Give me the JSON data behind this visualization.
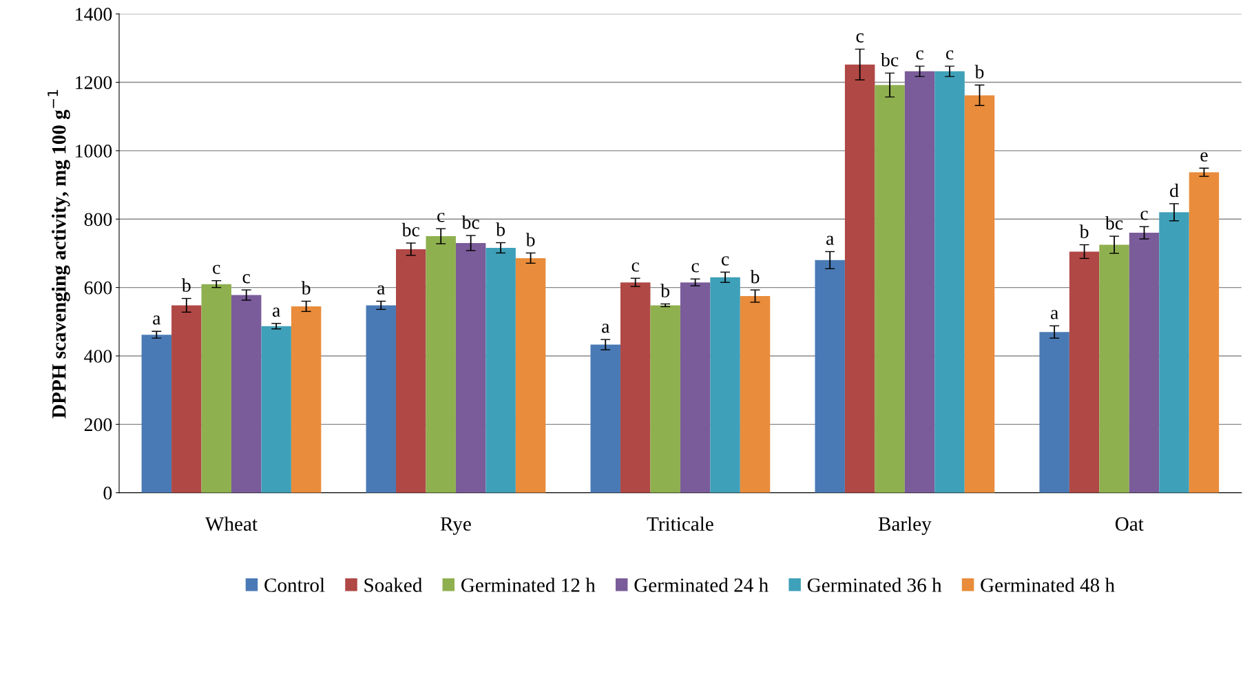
{
  "chart_data": {
    "type": "bar",
    "ylabel": "DPPH scavenging activity, mg 100 g$^{−1}$",
    "categories": [
      "Wheat",
      "Rye",
      "Triticale",
      "Barley",
      "Oat"
    ],
    "series": [
      {
        "name": "Control",
        "color": "#4a7ab5",
        "values": [
          462,
          548,
          433,
          680,
          470
        ],
        "errors": [
          10,
          12,
          15,
          25,
          18
        ],
        "value_labels": [
          "a",
          "a",
          "a",
          "a",
          "a"
        ]
      },
      {
        "name": "Soaked",
        "color": "#b04845",
        "values": [
          548,
          712,
          615,
          1252,
          705
        ],
        "errors": [
          20,
          18,
          12,
          45,
          20
        ],
        "value_labels": [
          "b",
          "bc",
          "c",
          "c",
          "b"
        ]
      },
      {
        "name": "Germinated 12 h",
        "color": "#8fb04f",
        "values": [
          610,
          750,
          548,
          1192,
          725
        ],
        "errors": [
          10,
          22,
          4,
          35,
          25
        ],
        "value_labels": [
          "c",
          "c",
          "b",
          "bc",
          "bc"
        ]
      },
      {
        "name": "Germinated 24 h",
        "color": "#7a5c9a",
        "values": [
          578,
          730,
          615,
          1232,
          760
        ],
        "errors": [
          15,
          22,
          10,
          15,
          18
        ],
        "value_labels": [
          "c",
          "bc",
          "c",
          "c",
          "c"
        ]
      },
      {
        "name": "Germinated 36 h",
        "color": "#3fa0b9",
        "values": [
          487,
          716,
          630,
          1232,
          820
        ],
        "errors": [
          8,
          15,
          15,
          15,
          25
        ],
        "value_labels": [
          "a",
          "b",
          "c",
          "c",
          "d"
        ]
      },
      {
        "name": "Germinated 48 h",
        "color": "#e98c3b",
        "values": [
          545,
          686,
          575,
          1162,
          937
        ],
        "errors": [
          15,
          15,
          18,
          30,
          12
        ],
        "value_labels": [
          "b",
          "b",
          "b",
          "b",
          "e"
        ]
      }
    ],
    "ylim": [
      0,
      1400
    ],
    "yticks": [
      0,
      200,
      400,
      600,
      800,
      1000,
      1200,
      1400
    ],
    "grid": "y",
    "legend": "bottom"
  }
}
